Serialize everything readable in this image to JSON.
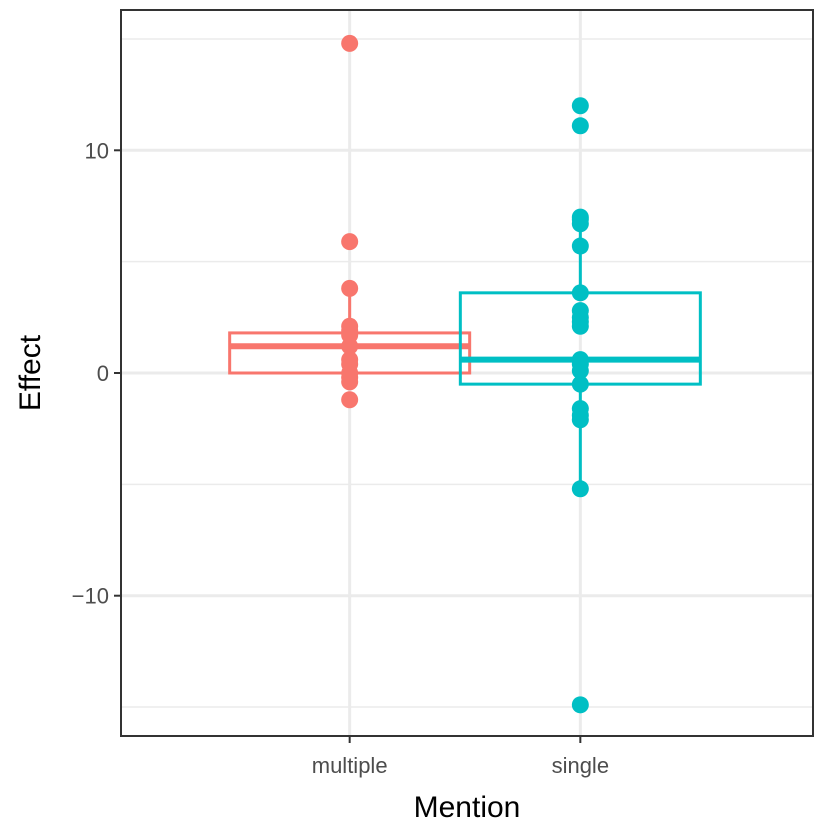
{
  "chart_data": {
    "type": "boxplot",
    "xlabel": "Mention",
    "ylabel": "Effect",
    "categories": [
      "multiple",
      "single"
    ],
    "ylim": [
      -16.3,
      16.3
    ],
    "yticks": [
      -10,
      0,
      10
    ],
    "ytick_labels": [
      "−10",
      "0",
      "10"
    ],
    "grid": true,
    "colors": {
      "multiple": "#F8766D",
      "single": "#00BFC4"
    },
    "boxes": [
      {
        "category": "multiple",
        "whisker_low": -0.4,
        "q1": 0.0,
        "median": 1.2,
        "q3": 1.8,
        "whisker_high": 3.8
      },
      {
        "category": "single",
        "whisker_low": -5.2,
        "q1": -0.5,
        "median": 0.6,
        "q3": 3.6,
        "whisker_high": 7.0
      }
    ],
    "points": [
      {
        "category": "multiple",
        "values": [
          14.8,
          5.9,
          3.8,
          2.1,
          1.9,
          1.7,
          1.2,
          0.6,
          0.4,
          0.0,
          -0.2,
          -0.4,
          -1.2
        ]
      },
      {
        "category": "single",
        "values": [
          12.0,
          11.1,
          7.0,
          6.9,
          6.7,
          5.7,
          3.6,
          2.8,
          2.5,
          2.3,
          2.1,
          0.6,
          0.4,
          0.1,
          -0.5,
          -1.6,
          -1.9,
          -2.1,
          -5.2,
          -14.9
        ]
      }
    ]
  }
}
